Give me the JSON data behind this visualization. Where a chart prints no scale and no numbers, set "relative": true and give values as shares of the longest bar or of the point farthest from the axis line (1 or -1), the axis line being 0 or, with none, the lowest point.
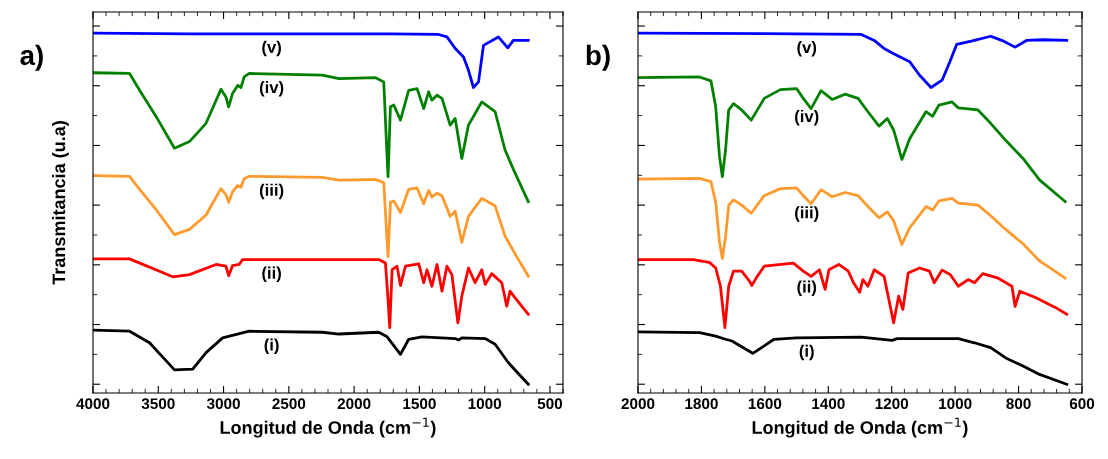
{
  "chart_data": [
    {
      "type": "line",
      "relative": true,
      "xlabel": "Longitud de Onda (cm$^{−1}$)",
      "ylabel": "Transmitancia (u.a)",
      "xlim": [
        4000,
        400
      ],
      "xticks": [
        4000,
        3500,
        3000,
        2500,
        2000,
        1500,
        1000,
        500
      ],
      "tick_labels": "x",
      "grid": false,
      "annotations": [
        "a)"
      ],
      "series": [
        {
          "name": "(v)",
          "color": "#0000ff",
          "x": [
            4000,
            3261,
            2498,
            1735,
            1353,
            1289,
            1225,
            1162,
            1124,
            1086,
            1047,
            1009,
            895,
            823,
            780,
            666
          ],
          "values": [
            1.0,
            0.998,
            0.998,
            0.998,
            0.996,
            0.989,
            0.956,
            0.932,
            0.894,
            0.845,
            0.861,
            0.965,
            0.989,
            0.958,
            0.979,
            0.979
          ]
        },
        {
          "name": "(iv)",
          "color": "#008000",
          "x": [
            4000,
            3720,
            3643,
            3516,
            3376,
            3261,
            3134,
            3020,
            2982,
            2961,
            2931,
            2892,
            2867,
            2842,
            2803,
            2244,
            2116,
            1836,
            1773,
            1752,
            1740,
            1722,
            1696,
            1645,
            1582,
            1518,
            1467,
            1429,
            1404,
            1365,
            1327,
            1264,
            1226,
            1175,
            1124,
            1073,
            1022,
            920,
            844,
            767,
            666
          ],
          "values": [
            0.887,
            0.885,
            0.837,
            0.762,
            0.672,
            0.691,
            0.743,
            0.84,
            0.818,
            0.79,
            0.828,
            0.851,
            0.845,
            0.875,
            0.885,
            0.88,
            0.87,
            0.873,
            0.861,
            0.686,
            0.591,
            0.79,
            0.795,
            0.752,
            0.837,
            0.842,
            0.785,
            0.833,
            0.809,
            0.823,
            0.814,
            0.738,
            0.757,
            0.643,
            0.738,
            0.771,
            0.804,
            0.776,
            0.667,
            0.601,
            0.52
          ]
        },
        {
          "name": "(iii)",
          "color": "#ff9a2e",
          "x": [
            4000,
            3720,
            3643,
            3516,
            3376,
            3261,
            3134,
            3020,
            2982,
            2961,
            2931,
            2892,
            2867,
            2842,
            2803,
            2244,
            2116,
            1836,
            1773,
            1752,
            1740,
            1722,
            1696,
            1645,
            1582,
            1518,
            1467,
            1429,
            1404,
            1365,
            1327,
            1264,
            1226,
            1175,
            1124,
            1073,
            1022,
            920,
            844,
            767,
            666
          ],
          "values": [
            0.594,
            0.592,
            0.555,
            0.497,
            0.426,
            0.441,
            0.482,
            0.557,
            0.54,
            0.518,
            0.548,
            0.566,
            0.561,
            0.585,
            0.592,
            0.589,
            0.581,
            0.583,
            0.574,
            0.437,
            0.363,
            0.518,
            0.522,
            0.489,
            0.555,
            0.559,
            0.514,
            0.552,
            0.533,
            0.544,
            0.537,
            0.478,
            0.493,
            0.404,
            0.478,
            0.504,
            0.529,
            0.508,
            0.422,
            0.371,
            0.308
          ]
        },
        {
          "name": "(ii)",
          "color": "#ff0000",
          "x": [
            4000,
            3720,
            3389,
            3261,
            3058,
            2982,
            2961,
            2931,
            2880,
            2854,
            1811,
            1760,
            1740,
            1727,
            1709,
            1671,
            1645,
            1607,
            1505,
            1467,
            1442,
            1404,
            1365,
            1327,
            1289,
            1251,
            1205,
            1175,
            1124,
            1073,
            1022,
            996,
            946,
            869,
            831,
            806,
            767,
            666
          ],
          "values": [
            0.357,
            0.357,
            0.306,
            0.312,
            0.341,
            0.336,
            0.309,
            0.338,
            0.341,
            0.355,
            0.355,
            0.345,
            0.241,
            0.161,
            0.326,
            0.336,
            0.281,
            0.336,
            0.343,
            0.289,
            0.326,
            0.279,
            0.341,
            0.265,
            0.336,
            0.312,
            0.175,
            0.251,
            0.331,
            0.289,
            0.326,
            0.284,
            0.315,
            0.289,
            0.222,
            0.265,
            0.246,
            0.199
          ]
        },
        {
          "name": "(i)",
          "color": "#000000",
          "x": [
            4000,
            3720,
            3567,
            3376,
            3236,
            3134,
            3007,
            2803,
            2244,
            2116,
            1811,
            1747,
            1645,
            1582,
            1480,
            1226,
            1200,
            1175,
            996,
            920,
            818,
            666
          ],
          "values": [
            0.154,
            0.151,
            0.118,
            0.041,
            0.043,
            0.09,
            0.132,
            0.151,
            0.148,
            0.143,
            0.148,
            0.135,
            0.085,
            0.128,
            0.135,
            0.13,
            0.126,
            0.132,
            0.13,
            0.114,
            0.061,
            0.0
          ]
        }
      ]
    },
    {
      "type": "line",
      "relative": true,
      "xlabel": "Longitud de Onda (cm$^{−1}$)",
      "xlim": [
        2000,
        600
      ],
      "xticks": [
        2000,
        1800,
        1600,
        1400,
        1200,
        1000,
        800,
        600
      ],
      "tick_labels": "x",
      "grid": false,
      "annotations": [
        "b)"
      ],
      "series": [
        {
          "name": "(v)",
          "color": "#0000ff",
          "x": [
            2000,
            1500,
            1296,
            1255,
            1224,
            1194,
            1143,
            1112,
            1076,
            1041,
            1015,
            995,
            949,
            888,
            847,
            811,
            775,
            724,
            648
          ],
          "values": [
            1.0,
            0.998,
            0.996,
            0.979,
            0.956,
            0.941,
            0.918,
            0.88,
            0.845,
            0.866,
            0.922,
            0.968,
            0.977,
            0.991,
            0.977,
            0.96,
            0.979,
            0.981,
            0.979
          ]
        },
        {
          "name": "(iv)",
          "color": "#008000",
          "x": [
            2000,
            1806,
            1770,
            1755,
            1743,
            1734,
            1724,
            1714,
            1699,
            1673,
            1643,
            1602,
            1551,
            1500,
            1479,
            1454,
            1423,
            1388,
            1347,
            1306,
            1275,
            1240,
            1214,
            1194,
            1168,
            1143,
            1092,
            1071,
            1051,
            1010,
            990,
            928,
            888,
            837,
            786,
            734,
            653
          ],
          "values": [
            0.873,
            0.875,
            0.864,
            0.79,
            0.648,
            0.591,
            0.667,
            0.781,
            0.799,
            0.781,
            0.752,
            0.814,
            0.839,
            0.842,
            0.814,
            0.785,
            0.836,
            0.811,
            0.826,
            0.814,
            0.776,
            0.735,
            0.757,
            0.724,
            0.64,
            0.7,
            0.776,
            0.763,
            0.795,
            0.804,
            0.787,
            0.781,
            0.743,
            0.691,
            0.643,
            0.582,
            0.52
          ]
        },
        {
          "name": "(iii)",
          "color": "#ff9a2e",
          "x": [
            2000,
            1806,
            1770,
            1755,
            1743,
            1734,
            1724,
            1714,
            1699,
            1673,
            1643,
            1602,
            1551,
            1500,
            1479,
            1454,
            1423,
            1388,
            1347,
            1306,
            1275,
            1240,
            1214,
            1194,
            1168,
            1143,
            1092,
            1071,
            1051,
            1010,
            990,
            928,
            888,
            837,
            786,
            734,
            653
          ],
          "values": [
            0.584,
            0.586,
            0.577,
            0.518,
            0.404,
            0.358,
            0.419,
            0.51,
            0.525,
            0.51,
            0.487,
            0.537,
            0.557,
            0.559,
            0.537,
            0.514,
            0.554,
            0.534,
            0.546,
            0.537,
            0.506,
            0.474,
            0.491,
            0.466,
            0.398,
            0.446,
            0.506,
            0.496,
            0.522,
            0.529,
            0.516,
            0.51,
            0.48,
            0.438,
            0.4,
            0.351,
            0.302
          ]
        },
        {
          "name": "(ii)",
          "color": "#ff0000",
          "x": [
            2000,
            1826,
            1775,
            1755,
            1740,
            1726,
            1714,
            1699,
            1673,
            1648,
            1641,
            1627,
            1602,
            1510,
            1479,
            1454,
            1428,
            1410,
            1398,
            1367,
            1337,
            1321,
            1301,
            1291,
            1275,
            1255,
            1224,
            1194,
            1178,
            1165,
            1148,
            1112,
            1081,
            1066,
            1041,
            1015,
            990,
            959,
            939,
            913,
            867,
            821,
            811,
            796,
            745,
            683,
            648
          ],
          "values": [
            0.355,
            0.355,
            0.347,
            0.331,
            0.279,
            0.161,
            0.279,
            0.322,
            0.322,
            0.293,
            0.281,
            0.303,
            0.336,
            0.345,
            0.322,
            0.307,
            0.326,
            0.27,
            0.326,
            0.341,
            0.322,
            0.29,
            0.262,
            0.298,
            0.279,
            0.326,
            0.307,
            0.175,
            0.251,
            0.213,
            0.317,
            0.331,
            0.322,
            0.289,
            0.325,
            0.312,
            0.279,
            0.298,
            0.289,
            0.315,
            0.303,
            0.279,
            0.222,
            0.265,
            0.246,
            0.218,
            0.199
          ]
        },
        {
          "name": "(i)",
          "color": "#000000",
          "x": [
            2000,
            1806,
            1755,
            1724,
            1704,
            1638,
            1602,
            1571,
            1500,
            1296,
            1199,
            1183,
            990,
            939,
            888,
            837,
            786,
            734,
            648
          ],
          "values": [
            0.149,
            0.147,
            0.137,
            0.128,
            0.123,
            0.088,
            0.109,
            0.128,
            0.132,
            0.134,
            0.125,
            0.13,
            0.13,
            0.118,
            0.104,
            0.073,
            0.052,
            0.028,
            0.0
          ]
        }
      ]
    }
  ]
}
